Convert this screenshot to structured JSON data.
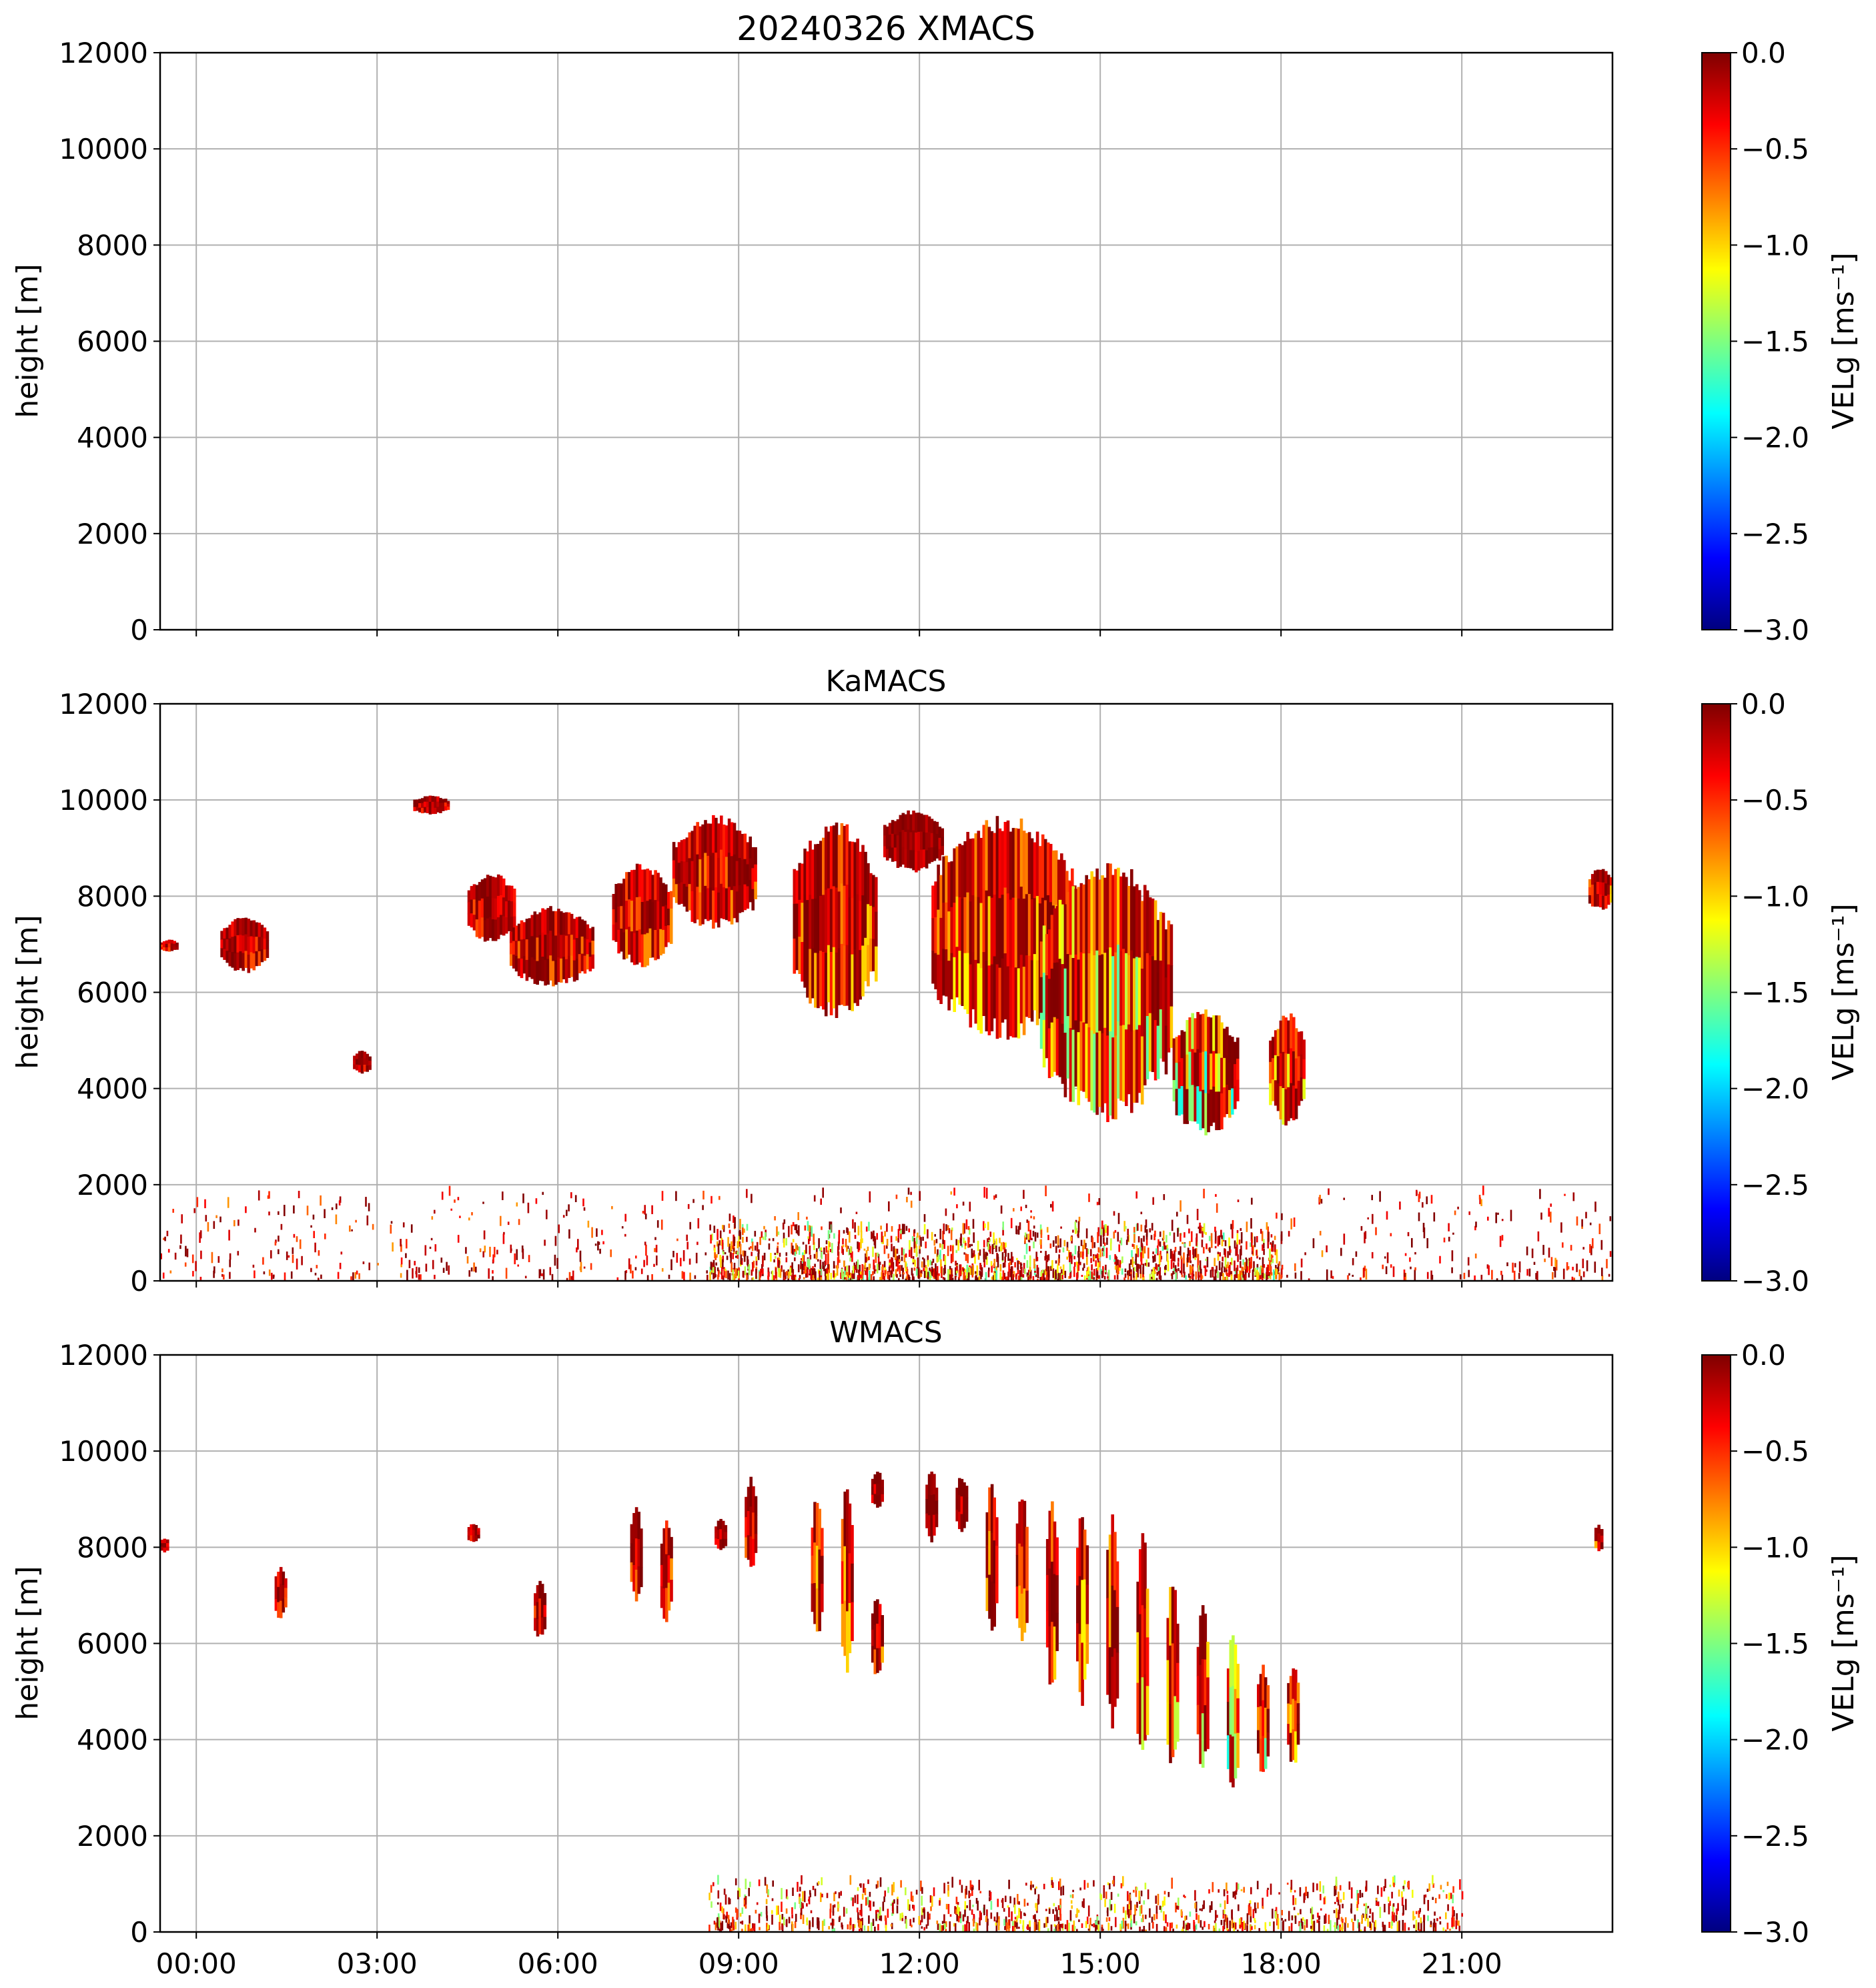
{
  "colors": {
    "jet": [
      "#00007f",
      "#0000ff",
      "#007fff",
      "#00ffff",
      "#7fff7f",
      "#ffff00",
      "#ff7f00",
      "#ff0000",
      "#7f0000"
    ],
    "grid": "#b0b0b0",
    "axis": "#000000"
  },
  "chart_data": [
    {
      "type": "heatmap",
      "title": "20240326 XMACS",
      "xlabel": "",
      "ylabel": "height [m]",
      "x_ticks": [],
      "y_ticks": [
        "0",
        "2000",
        "4000",
        "6000",
        "8000",
        "10000",
        "12000"
      ],
      "xlim": [
        -0.6,
        23.5
      ],
      "ylim": [
        0,
        12000
      ],
      "grid": true,
      "colorbar": {
        "label": "VELg [ms⁻¹]",
        "ticks": [
          "0.0",
          "−0.5",
          "−1.0",
          "−1.5",
          "−2.0",
          "−2.5",
          "−3.0"
        ],
        "range": [
          -3.0,
          0.0
        ]
      },
      "echoes": [],
      "clutter": []
    },
    {
      "type": "heatmap",
      "title": "KaMACS",
      "xlabel": "",
      "ylabel": "height [m]",
      "x_ticks": [],
      "y_ticks": [
        "0",
        "2000",
        "4000",
        "6000",
        "8000",
        "10000",
        "12000"
      ],
      "xlim": [
        -0.6,
        23.5
      ],
      "ylim": [
        0,
        12000
      ],
      "grid": true,
      "colorbar": {
        "label": "VELg [ms⁻¹]",
        "ticks": [
          "0.0",
          "−0.5",
          "−1.0",
          "−1.5",
          "−2.0",
          "−2.5",
          "−3.0"
        ],
        "range": [
          -3.0,
          0.0
        ]
      },
      "echoes": [
        {
          "t0": -0.6,
          "t1": -0.3,
          "h0": 6850,
          "h1": 7100,
          "vmin": -0.6
        },
        {
          "t0": 0.4,
          "t1": 1.2,
          "h0": 6400,
          "h1": 7600,
          "vmin": -0.6
        },
        {
          "t0": 2.6,
          "t1": 2.9,
          "h0": 4300,
          "h1": 4800,
          "vmin": -0.5
        },
        {
          "t0": 3.6,
          "t1": 4.2,
          "h0": 9700,
          "h1": 10100,
          "vmin": -0.5
        },
        {
          "t0": 4.5,
          "t1": 5.3,
          "h0": 7000,
          "h1": 8500,
          "vmin": -0.6
        },
        {
          "t0": 5.2,
          "t1": 6.6,
          "h0": 6100,
          "h1": 7800,
          "vmin": -0.7
        },
        {
          "t0": 6.9,
          "t1": 7.9,
          "h0": 6500,
          "h1": 8700,
          "vmin": -0.8
        },
        {
          "t0": 7.9,
          "t1": 9.3,
          "h0": 7300,
          "h1": 9700,
          "vmin": -0.8
        },
        {
          "t0": 9.9,
          "t1": 11.3,
          "h0": 5400,
          "h1": 9600,
          "vmin": -1.0
        },
        {
          "t0": 11.4,
          "t1": 12.4,
          "h0": 8500,
          "h1": 9800,
          "vmin": -0.3
        },
        {
          "t0": 12.2,
          "t1": 14.6,
          "h0": 5000,
          "h1": 9700,
          "vmin": -1.1
        },
        {
          "t0": 14.0,
          "t1": 16.2,
          "h0": 3300,
          "h1": 8800,
          "vmin": -1.6
        },
        {
          "t0": 16.2,
          "t1": 17.3,
          "h0": 3000,
          "h1": 5700,
          "vmin": -1.8
        },
        {
          "t0": 17.8,
          "t1": 18.4,
          "h0": 3200,
          "h1": 5600,
          "vmin": -1.2
        },
        {
          "t0": 23.1,
          "t1": 23.5,
          "h0": 7700,
          "h1": 8600,
          "vmin": -1.0
        }
      ],
      "clutter": [
        {
          "t0": -0.6,
          "t1": 23.5,
          "h0": 0,
          "h1": 1800,
          "vmin": -0.8,
          "density": 0.35
        },
        {
          "t0": 8.5,
          "t1": 18.0,
          "h0": 0,
          "h1": 1100,
          "vmin": -1.6,
          "density": 1.6
        }
      ]
    },
    {
      "type": "heatmap",
      "title": "WMACS",
      "xlabel": "",
      "ylabel": "height [m]",
      "x_ticks": [
        "00:00",
        "03:00",
        "06:00",
        "09:00",
        "12:00",
        "15:00",
        "18:00",
        "21:00"
      ],
      "y_ticks": [
        "0",
        "2000",
        "4000",
        "6000",
        "8000",
        "10000",
        "12000"
      ],
      "xlim": [
        -0.6,
        23.5
      ],
      "ylim": [
        0,
        12000
      ],
      "grid": true,
      "colorbar": {
        "label": "VELg [ms⁻¹]",
        "ticks": [
          "0.0",
          "−0.5",
          "−1.0",
          "−1.5",
          "−2.0",
          "−2.5",
          "−3.0"
        ],
        "range": [
          -3.0,
          0.0
        ]
      },
      "echoes": [
        {
          "t0": -0.6,
          "t1": -0.45,
          "h0": 7900,
          "h1": 8200,
          "vmin": -0.4
        },
        {
          "t0": 1.3,
          "t1": 1.5,
          "h0": 6500,
          "h1": 7600,
          "vmin": -0.6
        },
        {
          "t0": 4.5,
          "t1": 4.7,
          "h0": 8100,
          "h1": 8500,
          "vmin": -0.5
        },
        {
          "t0": 5.6,
          "t1": 5.8,
          "h0": 6100,
          "h1": 7300,
          "vmin": -0.6
        },
        {
          "t0": 7.2,
          "t1": 7.4,
          "h0": 6800,
          "h1": 8900,
          "vmin": -0.7
        },
        {
          "t0": 7.7,
          "t1": 7.9,
          "h0": 6400,
          "h1": 8600,
          "vmin": -0.8
        },
        {
          "t0": 8.6,
          "t1": 8.8,
          "h0": 7900,
          "h1": 8600,
          "vmin": -0.4
        },
        {
          "t0": 9.1,
          "t1": 9.3,
          "h0": 7500,
          "h1": 9500,
          "vmin": -0.7
        },
        {
          "t0": 10.2,
          "t1": 10.4,
          "h0": 6000,
          "h1": 9100,
          "vmin": -1.0
        },
        {
          "t0": 10.7,
          "t1": 10.9,
          "h0": 5300,
          "h1": 9400,
          "vmin": -1.0
        },
        {
          "t0": 11.2,
          "t1": 11.4,
          "h0": 5300,
          "h1": 7000,
          "vmin": -0.9
        },
        {
          "t0": 11.2,
          "t1": 11.4,
          "h0": 8800,
          "h1": 9600,
          "vmin": -0.4
        },
        {
          "t0": 12.1,
          "t1": 12.3,
          "h0": 8100,
          "h1": 9600,
          "vmin": -0.3
        },
        {
          "t0": 12.6,
          "t1": 12.8,
          "h0": 8300,
          "h1": 9500,
          "vmin": -0.4
        },
        {
          "t0": 13.1,
          "t1": 13.3,
          "h0": 6200,
          "h1": 9400,
          "vmin": -0.9
        },
        {
          "t0": 13.6,
          "t1": 13.8,
          "h0": 5900,
          "h1": 9200,
          "vmin": -0.9
        },
        {
          "t0": 14.1,
          "t1": 14.3,
          "h0": 5000,
          "h1": 9000,
          "vmin": -1.0
        },
        {
          "t0": 14.6,
          "t1": 14.8,
          "h0": 4700,
          "h1": 8800,
          "vmin": -1.1
        },
        {
          "t0": 15.1,
          "t1": 15.3,
          "h0": 4100,
          "h1": 8800,
          "vmin": -1.2
        },
        {
          "t0": 15.6,
          "t1": 15.8,
          "h0": 3300,
          "h1": 8400,
          "vmin": -1.3
        },
        {
          "t0": 16.1,
          "t1": 16.3,
          "h0": 3300,
          "h1": 7400,
          "vmin": -1.3
        },
        {
          "t0": 16.6,
          "t1": 16.8,
          "h0": 3300,
          "h1": 6800,
          "vmin": -1.4
        },
        {
          "t0": 17.1,
          "t1": 17.3,
          "h0": 2900,
          "h1": 6300,
          "vmin": -1.8
        },
        {
          "t0": 17.6,
          "t1": 17.8,
          "h0": 3200,
          "h1": 5600,
          "vmin": -1.6
        },
        {
          "t0": 18.1,
          "t1": 18.3,
          "h0": 3400,
          "h1": 5600,
          "vmin": -1.1
        },
        {
          "t0": 23.2,
          "t1": 23.35,
          "h0": 7900,
          "h1": 8500,
          "vmin": -0.9
        }
      ],
      "clutter": [
        {
          "t0": 8.5,
          "t1": 21.0,
          "h0": 0,
          "h1": 1000,
          "vmin": -1.5,
          "density": 0.9
        }
      ]
    }
  ]
}
